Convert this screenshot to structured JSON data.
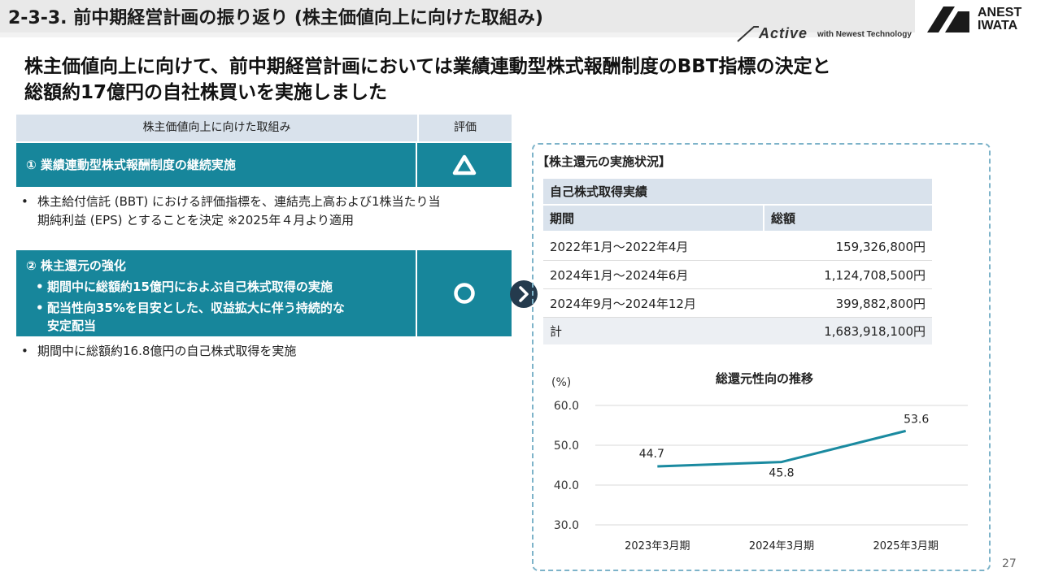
{
  "header": {
    "section_title": "2-3-3. 前中期経営計画の振り返り (株主価値向上に向けた取組み)",
    "tagline_active": "Active",
    "tagline_newest": "with Newest Technology",
    "logo_line1": "ANEST",
    "logo_line2": "IWATA"
  },
  "headline": {
    "line1": "株主価値向上に向けて、前中期経営計画においては業績連動型株式報酬制度のBBT指標の決定と",
    "line2": "総額約17億円の自社株買いを実施しました"
  },
  "left_table": {
    "col_initiative": "株主価値向上に向けた取組み",
    "col_rating": "評価",
    "item1_title": "①  業績連動型株式報酬制度の継続実施",
    "item1_rating_icon": "triangle-icon",
    "item1_note_line1": "株主給付信託 (BBT) における評価指標を、連結売上高および1株当たり当",
    "item1_note_line2": "期純利益 (EPS) とすることを決定 ※2025年４月より適用",
    "item2_title": "②  株主還元の強化",
    "item2_sub1": "期間中に総額約15億円におよぶ自己株式取得の実施",
    "item2_sub2_line1": "配当性向35%を目安とした、収益拡大に伴う持続的な",
    "item2_sub2_line2": "安定配当",
    "item2_rating_icon": "circle-icon",
    "item2_note": "期間中に総額約16.8億円の自己株式取得を実施",
    "bullet": "•"
  },
  "right_panel": {
    "title": "【株主還元の実施状況】",
    "buyback_table": {
      "title": "自己株式取得実績",
      "col_period": "期間",
      "col_amount": "総額",
      "rows": [
        {
          "period": "2022年1月～2022年4月",
          "amount": "159,326,800円"
        },
        {
          "period": "2024年1月～2024年6月",
          "amount": "1,124,708,500円"
        },
        {
          "period": "2024年9月～2024年12月",
          "amount": "399,882,800円"
        }
      ],
      "total_label": "計",
      "total_amount": "1,683,918,100円"
    }
  },
  "chart_data": {
    "type": "line",
    "title": "総還元性向の推移",
    "ylabel": "(%)",
    "categories": [
      "2023年3月期",
      "2024年3月期",
      "2025年3月期"
    ],
    "series": [
      {
        "values": [
          44.7,
          45.8,
          53.6
        ],
        "color": "#1a8aa0"
      }
    ],
    "data_labels": [
      "44.7",
      "45.8",
      "53.6"
    ],
    "yticks": [
      "30.0",
      "40.0",
      "50.0",
      "60.0"
    ],
    "ylim": [
      30,
      60
    ],
    "grid": true
  },
  "page_number": "27",
  "colors": {
    "teal": "#17869b",
    "navy": "#243a4d",
    "header_bg": "#d9e2ec"
  }
}
